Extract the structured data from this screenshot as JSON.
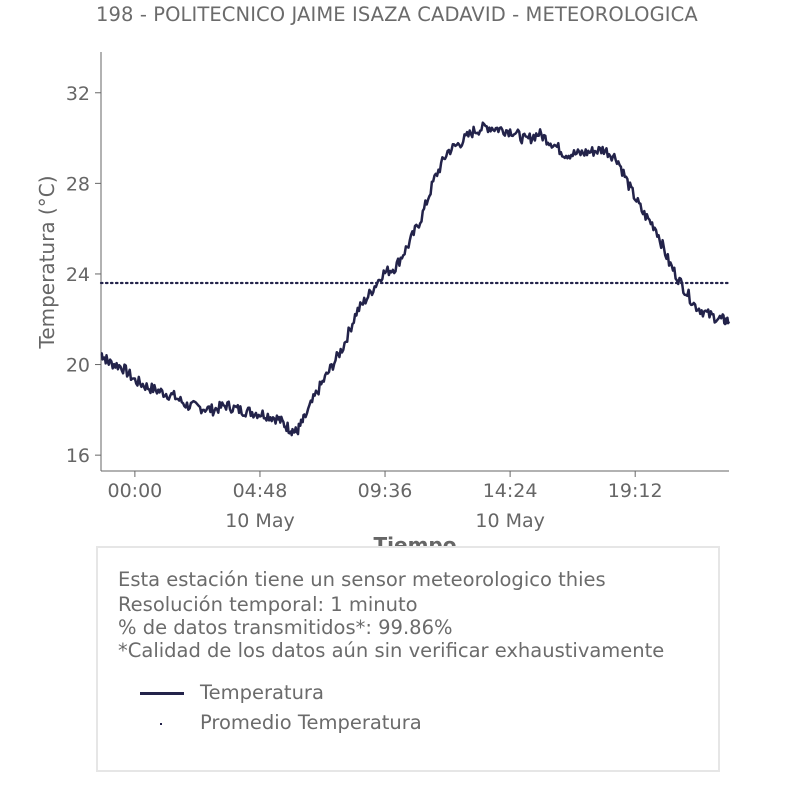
{
  "title": "198 - POLITECNICO JAIME ISAZA CADAVID - METEOROLOGICA",
  "chart_data": {
    "type": "line",
    "ylabel": "Temperatura (°C)",
    "xlabel": "Tiempo",
    "ylim": [
      15.3,
      33.8
    ],
    "xlim_hours": [
      -1.3,
      22.8
    ],
    "y_ticks": [
      {
        "value": 16,
        "label": "16"
      },
      {
        "value": 20,
        "label": "20"
      },
      {
        "value": 24,
        "label": "24"
      },
      {
        "value": 28,
        "label": "28"
      },
      {
        "value": 32,
        "label": "32"
      }
    ],
    "x_ticks": [
      {
        "value": 0.0,
        "label": "00:00",
        "sublabel": ""
      },
      {
        "value": 4.8,
        "label": "04:48",
        "sublabel": "10 May"
      },
      {
        "value": 9.6,
        "label": "09:36",
        "sublabel": ""
      },
      {
        "value": 14.4,
        "label": "14:24",
        "sublabel": "10 May"
      },
      {
        "value": 19.2,
        "label": "19:12",
        "sublabel": ""
      }
    ],
    "series": [
      {
        "name": "Temperatura",
        "color": "#23234a",
        "style": "solid",
        "points": [
          [
            -1.3,
            20.5
          ],
          [
            -1.0,
            20.1
          ],
          [
            -0.5,
            19.9
          ],
          [
            0.0,
            19.3
          ],
          [
            0.5,
            19.0
          ],
          [
            1.0,
            18.8
          ],
          [
            1.5,
            18.6
          ],
          [
            2.0,
            18.2
          ],
          [
            2.5,
            18.1
          ],
          [
            3.0,
            18.0
          ],
          [
            3.5,
            18.2
          ],
          [
            4.0,
            18.0
          ],
          [
            4.5,
            17.9
          ],
          [
            5.0,
            17.8
          ],
          [
            5.5,
            17.6
          ],
          [
            5.9,
            17.2
          ],
          [
            6.2,
            17.0
          ],
          [
            6.5,
            17.6
          ],
          [
            7.0,
            18.8
          ],
          [
            7.5,
            19.8
          ],
          [
            8.0,
            20.8
          ],
          [
            8.5,
            22.3
          ],
          [
            9.0,
            23.1
          ],
          [
            9.5,
            24.0
          ],
          [
            10.0,
            24.3
          ],
          [
            10.5,
            25.3
          ],
          [
            11.0,
            26.5
          ],
          [
            11.5,
            28.2
          ],
          [
            12.0,
            29.4
          ],
          [
            12.5,
            29.8
          ],
          [
            13.0,
            30.3
          ],
          [
            13.5,
            30.5
          ],
          [
            14.0,
            30.4
          ],
          [
            14.5,
            30.3
          ],
          [
            15.0,
            29.9
          ],
          [
            15.5,
            30.2
          ],
          [
            16.0,
            29.8
          ],
          [
            16.5,
            29.3
          ],
          [
            17.0,
            29.3
          ],
          [
            17.5,
            29.4
          ],
          [
            18.0,
            29.5
          ],
          [
            18.5,
            29.1
          ],
          [
            19.0,
            27.8
          ],
          [
            19.5,
            26.7
          ],
          [
            20.0,
            26.0
          ],
          [
            20.5,
            24.5
          ],
          [
            21.0,
            23.5
          ],
          [
            21.5,
            22.6
          ],
          [
            22.0,
            22.2
          ],
          [
            22.5,
            22.0
          ],
          [
            22.8,
            21.9
          ]
        ]
      },
      {
        "name": "Promedio Temperatura",
        "color": "#23234a",
        "style": "dotted",
        "value": 23.6
      }
    ]
  },
  "info": {
    "lines": [
      "Esta estación tiene un sensor meteorologico thies",
      "Resolución temporal: 1 minuto",
      "% de datos transmitidos*: 99.86%",
      "*Calidad de los datos aún sin verificar exhaustivamente"
    ],
    "legend": [
      {
        "label": "Temperatura",
        "kind": "line",
        "color": "#23234a"
      },
      {
        "label": "Promedio Temperatura",
        "kind": "dot",
        "color": "#23234a"
      }
    ]
  }
}
